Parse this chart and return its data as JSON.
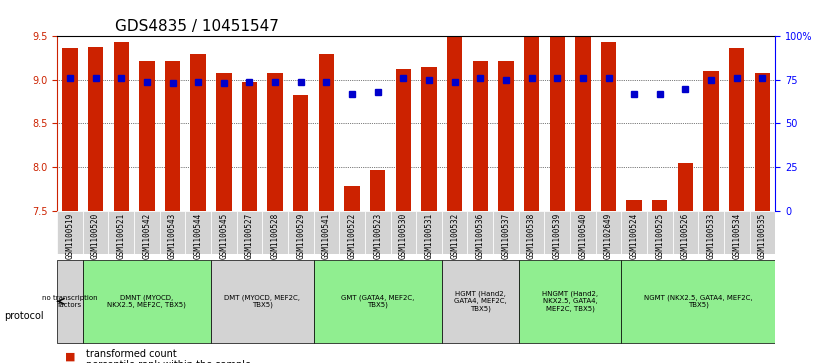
{
  "title": "GDS4835 / 10451547",
  "samples": [
    "GSM1100519",
    "GSM1100520",
    "GSM1100521",
    "GSM1100542",
    "GSM1100543",
    "GSM1100544",
    "GSM1100545",
    "GSM1100527",
    "GSM1100528",
    "GSM1100529",
    "GSM1100541",
    "GSM1100522",
    "GSM1100523",
    "GSM1100530",
    "GSM1100531",
    "GSM1100532",
    "GSM1100536",
    "GSM1100537",
    "GSM1100538",
    "GSM1100539",
    "GSM1100540",
    "GSM1102649",
    "GSM1100524",
    "GSM1100525",
    "GSM1100526",
    "GSM1100533",
    "GSM1100534",
    "GSM1100535"
  ],
  "bar_values": [
    9.37,
    9.38,
    9.43,
    9.22,
    9.22,
    9.3,
    9.08,
    8.98,
    9.08,
    8.83,
    9.3,
    7.78,
    7.97,
    9.13,
    9.15,
    9.95,
    9.22,
    9.22,
    9.95,
    9.95,
    9.95,
    9.43,
    7.62,
    7.62,
    8.05,
    9.1,
    9.37,
    9.08
  ],
  "percentile_values": [
    76,
    76,
    76,
    74,
    73,
    74,
    73,
    74,
    74,
    74,
    74,
    67,
    68,
    76,
    75,
    74,
    76,
    75,
    76,
    76,
    76,
    76,
    67,
    67,
    70,
    75,
    76,
    76
  ],
  "ylim_left": [
    7.5,
    9.5
  ],
  "ylim_right": [
    0,
    100
  ],
  "yticks_left": [
    7.5,
    8.0,
    8.5,
    9.0,
    9.5
  ],
  "yticks_right": [
    0,
    25,
    50,
    75,
    100
  ],
  "ytick_labels_right": [
    "0",
    "25",
    "50",
    "75",
    "100%"
  ],
  "protocols": [
    {
      "label": "no transcription\nfactors",
      "start": 0,
      "end": 1,
      "color": "#d3d3d3"
    },
    {
      "label": "DMNT (MYOCD,\nNKX2.5, MEF2C, TBX5)",
      "start": 1,
      "end": 6,
      "color": "#90EE90"
    },
    {
      "label": "DMT (MYOCD, MEF2C,\nTBX5)",
      "start": 6,
      "end": 10,
      "color": "#d3d3d3"
    },
    {
      "label": "GMT (GATA4, MEF2C,\nTBX5)",
      "start": 10,
      "end": 15,
      "color": "#90EE90"
    },
    {
      "label": "HGMT (Hand2,\nGATA4, MEF2C,\nTBX5)",
      "start": 15,
      "end": 18,
      "color": "#d3d3d3"
    },
    {
      "label": "HNGMT (Hand2,\nNKX2.5, GATA4,\nMEF2C, TBX5)",
      "start": 18,
      "end": 22,
      "color": "#90EE90"
    },
    {
      "label": "NGMT (NKX2.5, GATA4, MEF2C,\nTBX5)",
      "start": 22,
      "end": 28,
      "color": "#90EE90"
    }
  ],
  "bar_color": "#cc2200",
  "dot_color": "#0000cc",
  "grid_color": "#000000",
  "title_fontsize": 11,
  "tick_fontsize": 7,
  "label_fontsize": 7
}
